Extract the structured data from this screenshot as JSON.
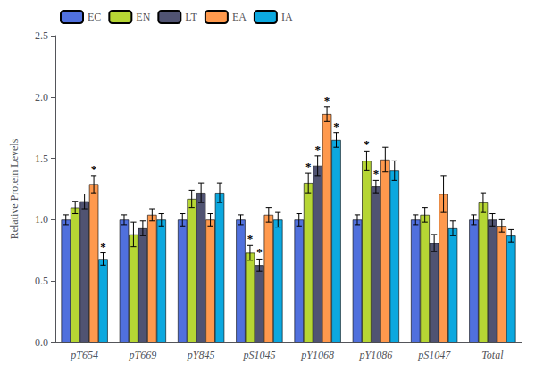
{
  "chart_data": {
    "type": "bar",
    "ylabel": "Relative Protein Levels",
    "categories": [
      "pT654",
      "pT669",
      "pY845",
      "pS1045",
      "pY1068",
      "pY1086",
      "pS1047",
      "Total"
    ],
    "series": [
      {
        "name": "EC",
        "values": [
          1.0,
          1.0,
          1.0,
          1.0,
          1.0,
          1.0,
          1.0,
          1.0
        ],
        "errors": [
          0.04,
          0.04,
          0.05,
          0.04,
          0.05,
          0.04,
          0.04,
          0.04
        ]
      },
      {
        "name": "EN",
        "values": [
          1.1,
          0.88,
          1.17,
          0.73,
          1.3,
          1.48,
          1.04,
          1.14
        ],
        "errors": [
          0.05,
          0.1,
          0.07,
          0.06,
          0.08,
          0.08,
          0.06,
          0.08
        ]
      },
      {
        "name": "LT",
        "values": [
          1.15,
          0.93,
          1.22,
          0.63,
          1.44,
          1.27,
          0.81,
          1.0
        ],
        "errors": [
          0.06,
          0.06,
          0.08,
          0.05,
          0.08,
          0.05,
          0.07,
          0.05
        ]
      },
      {
        "name": "EA",
        "values": [
          1.29,
          1.04,
          1.0,
          1.04,
          1.86,
          1.49,
          1.21,
          0.95
        ],
        "errors": [
          0.07,
          0.05,
          0.05,
          0.06,
          0.06,
          0.1,
          0.15,
          0.05
        ]
      },
      {
        "name": "IA",
        "values": [
          0.68,
          1.0,
          1.22,
          1.0,
          1.65,
          1.4,
          0.93,
          0.87
        ],
        "errors": [
          0.05,
          0.05,
          0.08,
          0.06,
          0.06,
          0.08,
          0.06,
          0.05
        ]
      }
    ],
    "annotations": [
      {
        "text": "*",
        "category": "pT654",
        "series": "EA"
      },
      {
        "text": "*",
        "category": "pT654",
        "series": "IA"
      },
      {
        "text": "*",
        "category": "pS1045",
        "series": "EN"
      },
      {
        "text": "*",
        "category": "pS1045",
        "series": "LT"
      },
      {
        "text": "*",
        "category": "pY1068",
        "series": "EN"
      },
      {
        "text": "*",
        "category": "pY1068",
        "series": "LT"
      },
      {
        "text": "*",
        "category": "pY1068",
        "series": "EA"
      },
      {
        "text": "*",
        "category": "pY1068",
        "series": "IA"
      },
      {
        "text": "*",
        "category": "pY1086",
        "series": "EN"
      },
      {
        "text": "*",
        "category": "pY1086",
        "series": "LT"
      }
    ],
    "ylim": [
      0.0,
      2.5
    ],
    "yticks": [
      {
        "value": 0,
        "label": "0.0"
      },
      0.5,
      {
        "value": 1,
        "label": "1.0"
      },
      1.5,
      {
        "value": 2,
        "label": "2.0"
      },
      2.5
    ],
    "grid": false,
    "legend": "upper left"
  }
}
